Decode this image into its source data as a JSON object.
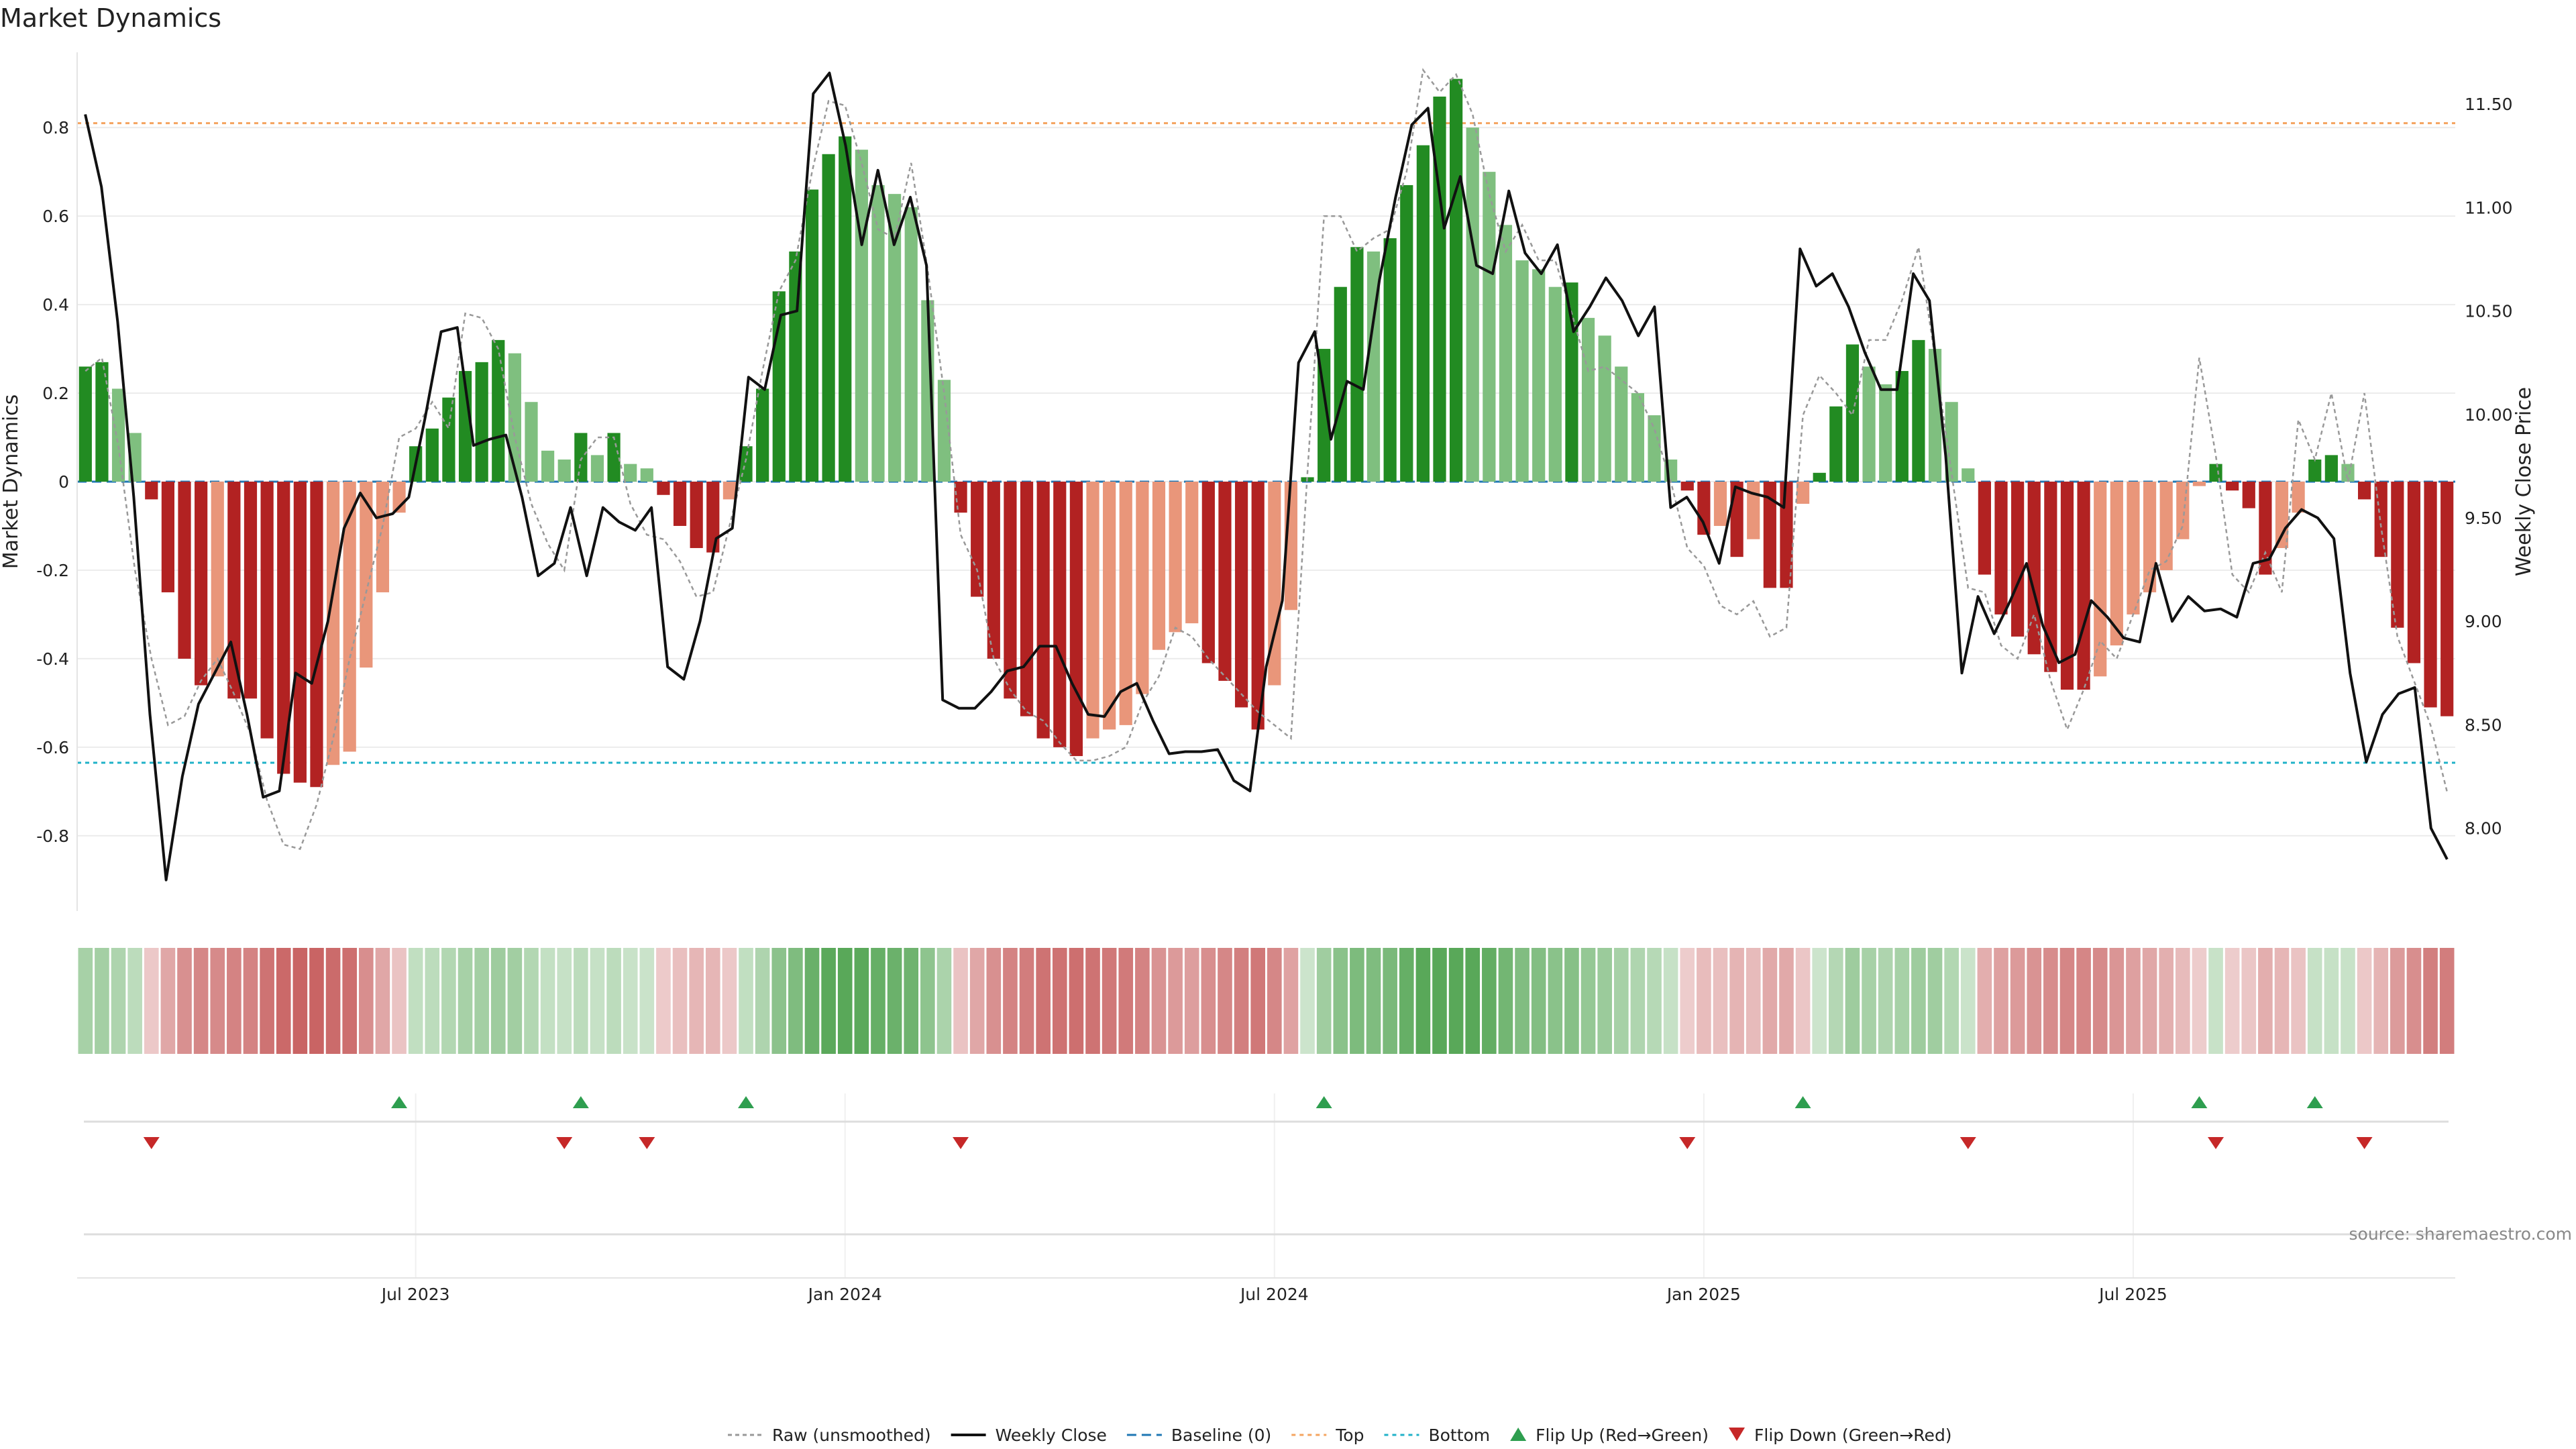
{
  "chart_data": {
    "type": "bar",
    "title": "Market Dynamics",
    "ylabel_left": "Market Dynamics",
    "ylabel_right": "Weekly Close Price",
    "ylim_left": [
      -0.97,
      0.97
    ],
    "ylim_right": [
      7.6,
      11.75
    ],
    "yticks_left": [
      "0.8",
      "0.6",
      "0.4",
      "0.2",
      "0",
      "-0.2",
      "-0.4",
      "-0.6",
      "-0.8"
    ],
    "yticks_right": [
      "11.50",
      "11.00",
      "10.50",
      "10.00",
      "9.50",
      "9.00",
      "8.50",
      "8.00"
    ],
    "xticks": [
      {
        "label": "Jul 2023",
        "week": 20.5
      },
      {
        "label": "Jan 2024",
        "week": 46.5
      },
      {
        "label": "Jul 2024",
        "week": 72.5
      },
      {
        "label": "Jan 2025",
        "week": 98.5
      },
      {
        "label": "Jul 2025",
        "week": 124.5
      }
    ],
    "top_line": 0.81,
    "bottom_line": -0.635,
    "baseline": 0,
    "dynamics": [
      0.26,
      0.27,
      0.21,
      0.11,
      -0.04,
      -0.25,
      -0.4,
      -0.46,
      -0.44,
      -0.49,
      -0.49,
      -0.58,
      -0.66,
      -0.68,
      -0.69,
      -0.64,
      -0.61,
      -0.42,
      -0.25,
      -0.07,
      0.08,
      0.12,
      0.19,
      0.25,
      0.27,
      0.32,
      0.29,
      0.18,
      0.07,
      0.05,
      0.11,
      0.06,
      0.11,
      0.04,
      0.03,
      -0.03,
      -0.1,
      -0.15,
      -0.16,
      -0.04,
      0.08,
      0.21,
      0.43,
      0.52,
      0.66,
      0.74,
      0.78,
      0.75,
      0.67,
      0.65,
      0.62,
      0.41,
      0.23,
      -0.07,
      -0.26,
      -0.4,
      -0.49,
      -0.53,
      -0.58,
      -0.6,
      -0.62,
      -0.58,
      -0.56,
      -0.55,
      -0.48,
      -0.38,
      -0.34,
      -0.32,
      -0.41,
      -0.45,
      -0.51,
      -0.56,
      -0.46,
      -0.29,
      0.01,
      0.3,
      0.44,
      0.53,
      0.52,
      0.55,
      0.67,
      0.76,
      0.87,
      0.91,
      0.8,
      0.7,
      0.58,
      0.5,
      0.48,
      0.44,
      0.45,
      0.37,
      0.33,
      0.26,
      0.2,
      0.15,
      0.05,
      -0.02,
      -0.12,
      -0.1,
      -0.17,
      -0.13,
      -0.24,
      -0.24,
      -0.05,
      0.02,
      0.17,
      0.31,
      0.26,
      0.22,
      0.25,
      0.32,
      0.3,
      0.18,
      0.03,
      -0.21,
      -0.3,
      -0.35,
      -0.39,
      -0.43,
      -0.47,
      -0.47,
      -0.44,
      -0.37,
      -0.3,
      -0.25,
      -0.2,
      -0.13,
      -0.01,
      0.04,
      -0.02,
      -0.06,
      -0.21,
      -0.15,
      -0.07,
      0.05,
      0.06,
      0.04,
      -0.04,
      -0.17,
      -0.33,
      -0.41,
      -0.51,
      -0.53
    ],
    "raw": [
      0.25,
      0.28,
      0.08,
      -0.2,
      -0.4,
      -0.55,
      -0.53,
      -0.45,
      -0.4,
      -0.48,
      -0.57,
      -0.72,
      -0.82,
      -0.83,
      -0.73,
      -0.58,
      -0.4,
      -0.25,
      -0.1,
      0.1,
      0.12,
      0.18,
      0.12,
      0.38,
      0.37,
      0.3,
      0.1,
      -0.05,
      -0.14,
      -0.2,
      0.05,
      0.1,
      0.1,
      -0.05,
      -0.12,
      -0.13,
      -0.18,
      -0.26,
      -0.25,
      -0.1,
      0.05,
      0.25,
      0.43,
      0.5,
      0.7,
      0.86,
      0.85,
      0.72,
      0.57,
      0.55,
      0.72,
      0.48,
      0.2,
      -0.12,
      -0.2,
      -0.4,
      -0.47,
      -0.52,
      -0.54,
      -0.59,
      -0.63,
      -0.63,
      -0.62,
      -0.6,
      -0.5,
      -0.44,
      -0.33,
      -0.35,
      -0.4,
      -0.44,
      -0.48,
      -0.52,
      -0.55,
      -0.58,
      0.02,
      0.6,
      0.6,
      0.52,
      0.55,
      0.57,
      0.7,
      0.93,
      0.88,
      0.92,
      0.83,
      0.65,
      0.52,
      0.58,
      0.5,
      0.5,
      0.38,
      0.25,
      0.26,
      0.23,
      0.2,
      0.12,
      0.0,
      -0.15,
      -0.19,
      -0.28,
      -0.3,
      -0.27,
      -0.35,
      -0.33,
      0.15,
      0.24,
      0.2,
      0.15,
      0.32,
      0.32,
      0.41,
      0.53,
      0.28,
      0.02,
      -0.24,
      -0.25,
      -0.37,
      -0.4,
      -0.3,
      -0.45,
      -0.56,
      -0.47,
      -0.36,
      -0.4,
      -0.3,
      -0.2,
      -0.18,
      -0.1,
      0.28,
      0.06,
      -0.21,
      -0.25,
      -0.16,
      -0.25,
      0.14,
      0.05,
      0.2,
      0.0,
      0.2,
      -0.1,
      -0.35,
      -0.45,
      -0.55,
      -0.7
    ],
    "close": [
      11.45,
      11.1,
      10.45,
      9.6,
      8.55,
      7.75,
      8.25,
      8.6,
      8.75,
      8.9,
      8.55,
      8.15,
      8.18,
      8.75,
      8.7,
      9.0,
      9.45,
      9.62,
      9.5,
      9.52,
      9.6,
      9.98,
      10.4,
      10.42,
      9.85,
      9.88,
      9.9,
      9.6,
      9.22,
      9.28,
      9.55,
      9.22,
      9.55,
      9.48,
      9.44,
      9.55,
      8.78,
      8.72,
      9.0,
      9.4,
      9.45,
      10.18,
      10.12,
      10.48,
      10.5,
      11.55,
      11.65,
      11.3,
      10.82,
      11.18,
      10.82,
      11.05,
      10.72,
      8.62,
      8.58,
      8.58,
      8.66,
      8.76,
      8.78,
      8.88,
      8.88,
      8.7,
      8.55,
      8.54,
      8.66,
      8.7,
      8.52,
      8.36,
      8.37,
      8.37,
      8.38,
      8.23,
      8.18,
      8.78,
      9.1,
      10.25,
      10.4,
      9.88,
      10.16,
      10.12,
      10.65,
      11.05,
      11.4,
      11.48,
      10.9,
      11.15,
      10.72,
      10.68,
      11.08,
      10.78,
      10.68,
      10.82,
      10.4,
      10.52,
      10.66,
      10.55,
      10.38,
      10.52,
      9.55,
      9.6,
      9.48,
      9.28,
      9.65,
      9.62,
      9.6,
      9.55,
      10.8,
      10.62,
      10.68,
      10.52,
      10.3,
      10.12,
      10.12,
      10.68,
      10.55,
      9.8,
      8.75,
      9.12,
      8.94,
      9.1,
      9.28,
      8.98,
      8.8,
      8.84,
      9.1,
      9.02,
      8.92,
      8.9,
      9.28,
      9.0,
      9.12,
      9.05,
      9.06,
      9.02,
      9.28,
      9.3,
      9.45,
      9.54,
      9.5,
      9.4,
      8.75,
      8.32,
      8.55,
      8.65,
      8.68,
      8.0,
      7.85
    ],
    "flips_up": [
      19,
      30,
      40,
      75,
      104,
      128,
      135
    ],
    "flips_down": [
      4,
      29,
      34,
      53,
      97,
      114,
      129,
      138
    ],
    "source": "source: sharemaestro.com",
    "legend": [
      "Raw (unsmoothed)",
      "Weekly Close",
      "Baseline (0)",
      "Top",
      "Bottom",
      "Flip Up (Red→Green)",
      "Flip Down (Green→Red)"
    ],
    "colors": {
      "strong_green": "#228b22",
      "light_green": "#7fbf7f",
      "strong_red": "#b22222",
      "light_red": "#e9967a",
      "close_line": "#111111",
      "raw_line": "#999999",
      "baseline": "#1f77b4",
      "top": "#f4a460",
      "bottom": "#20b2c8",
      "flip_up": "#2e9e4f",
      "flip_down": "#c62828"
    }
  }
}
